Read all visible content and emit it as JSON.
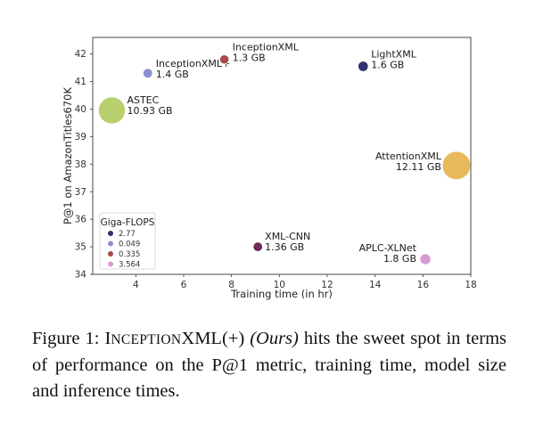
{
  "chart_data": {
    "type": "scatter",
    "xlabel": "Training time (in hr)",
    "ylabel": "P@1 on AmazonTitles670K",
    "xlim": [
      2.2,
      18.0
    ],
    "ylim": [
      34.0,
      42.6
    ],
    "xticks": [
      4,
      6,
      8,
      10,
      12,
      14,
      16,
      18
    ],
    "yticks": [
      34,
      35,
      36,
      37,
      38,
      39,
      40,
      41,
      42
    ],
    "grid": false,
    "points": [
      {
        "name": "InceptionXML+",
        "size_label": "1.4 GB",
        "x": 4.5,
        "y": 41.3,
        "size_gb": 1.4,
        "color": "#8c90cf"
      },
      {
        "name": "InceptionXML",
        "size_label": "1.3 GB",
        "x": 7.7,
        "y": 41.8,
        "size_gb": 1.3,
        "color": "#a84a4a"
      },
      {
        "name": "LightXML",
        "size_label": "1.6 GB",
        "x": 13.5,
        "y": 41.55,
        "size_gb": 1.6,
        "color": "#2f3470"
      },
      {
        "name": "ASTEC",
        "size_label": "10.93 GB",
        "x": 3.0,
        "y": 39.95,
        "size_gb": 10.93,
        "color": "#b8cf6e"
      },
      {
        "name": "AttentionXML",
        "size_label": "12.11 GB",
        "x": 17.4,
        "y": 37.95,
        "size_gb": 12.11,
        "color": "#e7b95a"
      },
      {
        "name": "XML-CNN",
        "size_label": "1.36 GB",
        "x": 9.1,
        "y": 35.0,
        "size_gb": 1.36,
        "color": "#6b2d5c"
      },
      {
        "name": "APLC-XLNet",
        "size_label": "1.8 GB",
        "x": 16.1,
        "y": 34.55,
        "size_gb": 1.8,
        "color": "#d79bd3"
      }
    ],
    "legend": {
      "title": "Giga-FLOPS",
      "placement": "lower-left",
      "entries": [
        {
          "label": "2.77",
          "color": "#2f3470"
        },
        {
          "label": "0.049",
          "color": "#8c90cf"
        },
        {
          "label": "0.335",
          "color": "#a84a4a"
        },
        {
          "label": "3.564",
          "color": "#d79bd3"
        }
      ]
    }
  },
  "caption": {
    "prefix": "Figure 1: ",
    "name_initial": "I",
    "name_smallcaps": "NCEPTION",
    "name_rest": "XML(+) ",
    "ours": "(Ours)",
    "text": " hits the sweet spot in terms of performance on the P@1 metric, training time, model size and inference times."
  }
}
